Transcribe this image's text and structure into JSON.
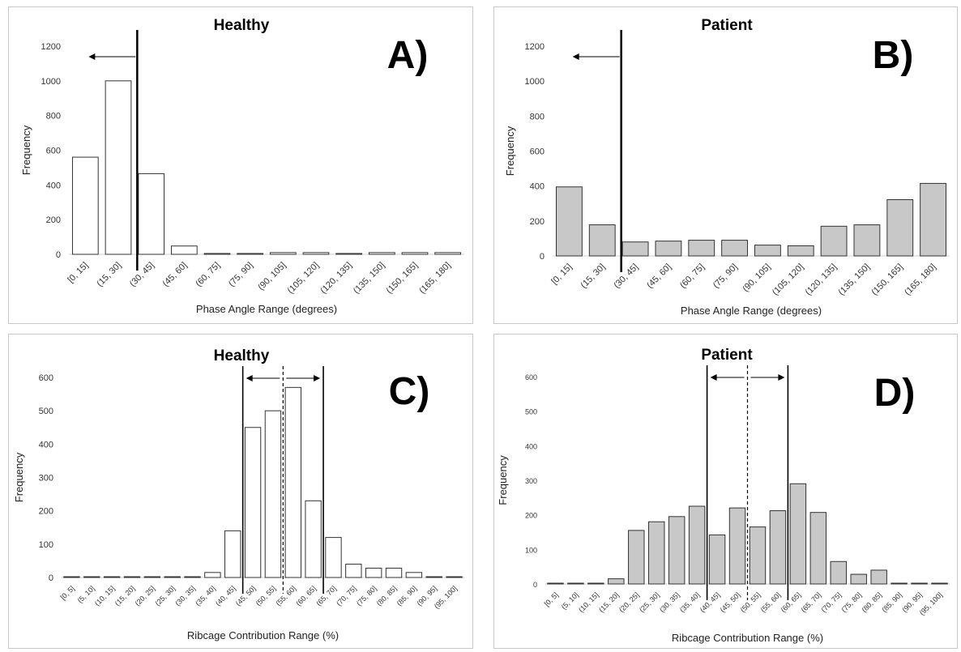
{
  "colors": {
    "healthy_fill": "#ffffff",
    "patient_fill": "#c8c8c8",
    "bar_stroke": "#333333",
    "line": "#000000"
  },
  "chart_data": [
    {
      "panel": "A)",
      "type": "bar",
      "title": "Healthy",
      "xlabel": "Phase Angle Range (degrees)",
      "ylabel": "Frequency",
      "ylim": [
        0,
        1200
      ],
      "yticks": [
        0,
        200,
        400,
        600,
        800,
        1000,
        1200
      ],
      "categories": [
        "[0, 15]",
        "(15, 30]",
        "(30, 45]",
        "(45, 60]",
        "(60, 75]",
        "(75, 90]",
        "(90, 105]",
        "(105, 120]",
        "(120, 135]",
        "(135, 150]",
        "(150, 165]",
        "(165, 180]"
      ],
      "values": [
        560,
        1000,
        465,
        48,
        5,
        5,
        10,
        10,
        5,
        10,
        10,
        10
      ],
      "fill": "white",
      "threshold_line_x": 30,
      "arrow": "left",
      "grid": false
    },
    {
      "panel": "B)",
      "type": "bar",
      "title": "Patient",
      "xlabel": "Phase Angle Range (degrees)",
      "ylabel": "Frequency",
      "ylim": [
        0,
        1200
      ],
      "yticks": [
        0,
        200,
        400,
        600,
        800,
        1000,
        1200
      ],
      "categories": [
        "[0, 15]",
        "(15, 30]",
        "(30, 45]",
        "(45, 60]",
        "(60, 75]",
        "(75, 90]",
        "(90, 105]",
        "(105, 120]",
        "(120, 135]",
        "(135, 150]",
        "(150, 165]",
        "(165, 180]"
      ],
      "values": [
        395,
        178,
        80,
        85,
        90,
        90,
        62,
        58,
        170,
        178,
        322,
        415
      ],
      "fill": "gray",
      "threshold_line_x": 30,
      "arrow": "left",
      "grid": false
    },
    {
      "panel": "C)",
      "type": "bar",
      "title": "Healthy",
      "xlabel": "Ribcage Contribution Range (%)",
      "ylabel": "Frequency",
      "ylim": [
        0,
        600
      ],
      "yticks": [
        0,
        100,
        200,
        300,
        400,
        500,
        600
      ],
      "categories": [
        "[0, 5]",
        "(5, 10]",
        "(10, 15]",
        "(15, 20]",
        "(20, 25]",
        "(25, 30]",
        "(30, 35]",
        "(35, 40]",
        "(40, 45]",
        "(45, 50]",
        "(50, 55]",
        "(55, 60]",
        "(60, 65]",
        "(65, 70]",
        "(70, 75]",
        "(75, 80]",
        "(80, 85]",
        "(85, 90]",
        "(90, 95]",
        "(95, 100]"
      ],
      "values": [
        0,
        0,
        0,
        0,
        0,
        0,
        0,
        15,
        140,
        450,
        500,
        570,
        230,
        120,
        40,
        28,
        28,
        15,
        2,
        2
      ],
      "fill": "white",
      "solid_lines_x": [
        45,
        65
      ],
      "dashed_line_x": 55,
      "arrows": "outward",
      "grid": false
    },
    {
      "panel": "D)",
      "type": "bar",
      "title": "Patient",
      "xlabel": "Ribcage Contribution Range (%)",
      "ylabel": "Frequency",
      "ylim": [
        0,
        600
      ],
      "yticks": [
        0,
        100,
        200,
        300,
        400,
        500,
        600
      ],
      "categories": [
        "[0, 5]",
        "(5, 10]",
        "(10, 15]",
        "(15, 20]",
        "(20, 25]",
        "(25, 30]",
        "(30, 35]",
        "(35, 40]",
        "(40, 45]",
        "(45, 50]",
        "(50, 55]",
        "(55, 60]",
        "(60, 65]",
        "(65, 70]",
        "(70, 75]",
        "(75, 80]",
        "(80, 85]",
        "(85, 90]",
        "(90, 95]",
        "(95, 100]"
      ],
      "values": [
        0,
        0,
        0,
        15,
        155,
        180,
        195,
        225,
        142,
        220,
        165,
        212,
        290,
        207,
        65,
        28,
        40,
        0,
        0,
        0
      ],
      "fill": "gray",
      "solid_lines_x": [
        40,
        60
      ],
      "dashed_line_x": 50,
      "arrows": "outward",
      "grid": false
    }
  ]
}
